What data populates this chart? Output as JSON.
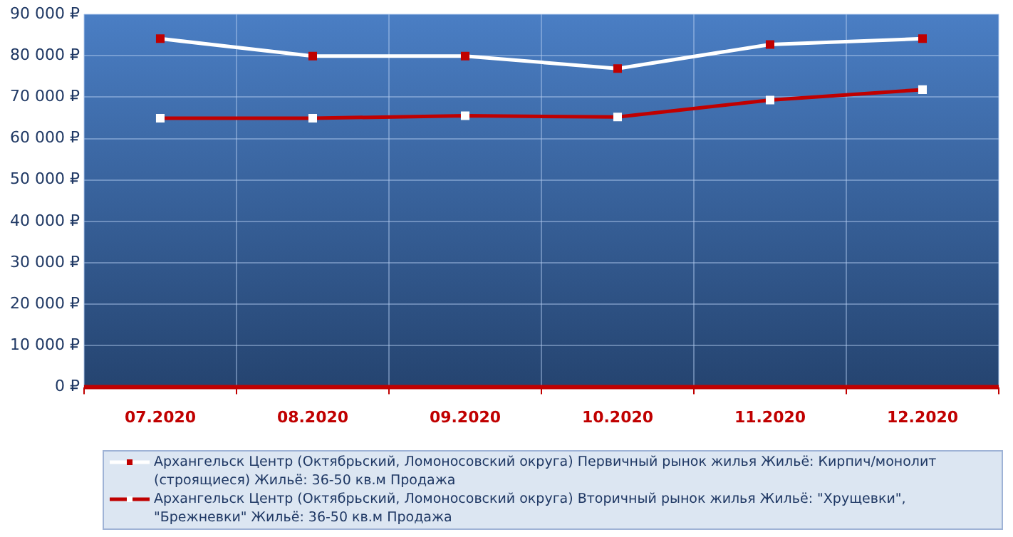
{
  "chart_data": {
    "type": "line",
    "categories": [
      "07.2020",
      "08.2020",
      "09.2020",
      "10.2020",
      "11.2020",
      "12.2020"
    ],
    "series": [
      {
        "name": "Архангельск Центр (Октябрьский,  Ломоносовский округа) Первичный рынок жилья Жильё: Кирпич/монолит (строящиеся) Жильё: 36-50 кв.м Продажа",
        "color": "#ffffff",
        "values": [
          84100,
          79900,
          79900,
          76900,
          82700,
          84100
        ]
      },
      {
        "name": "Архангельск Центр (Октябрьский,  Ломоносовский округа) Вторичный рынок жилья Жильё: \"Хрущевки\", \"Брежневки\" Жильё: 36-50 кв.м Продажа",
        "color": "#c00000",
        "values": [
          64900,
          64900,
          65500,
          65200,
          69300,
          71800
        ]
      }
    ],
    "ylim": [
      0,
      90000
    ],
    "yticks": [
      {
        "value": 0,
        "label": "0 ₽"
      },
      {
        "value": 10000,
        "label": "10 000 ₽"
      },
      {
        "value": 20000,
        "label": "20 000 ₽"
      },
      {
        "value": 30000,
        "label": "30 000 ₽"
      },
      {
        "value": 40000,
        "label": "40 000 ₽"
      },
      {
        "value": 50000,
        "label": "50 000 ₽"
      },
      {
        "value": 60000,
        "label": "60 000 ₽"
      },
      {
        "value": 70000,
        "label": "70 000 ₽"
      },
      {
        "value": 80000,
        "label": "80 000 ₽"
      },
      {
        "value": 90000,
        "label": "90 000 ₽"
      }
    ],
    "grid": true,
    "legend": "bottom",
    "marker": "square",
    "line_style": "solid"
  }
}
